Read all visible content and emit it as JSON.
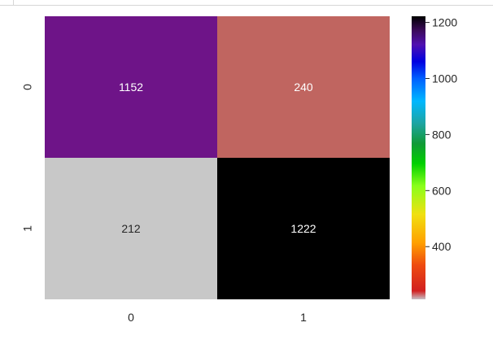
{
  "chart_data": {
    "type": "heatmap",
    "title": "",
    "xlabel": "",
    "ylabel": "",
    "x_ticks": [
      "0",
      "1"
    ],
    "y_ticks": [
      "0",
      "1"
    ],
    "matrix": [
      [
        1152,
        240
      ],
      [
        212,
        1222
      ]
    ],
    "colormap": "gist_ncar_r",
    "colorbar": {
      "min": 212,
      "max": 1222,
      "ticks": [
        400,
        600,
        800,
        1000,
        1200
      ],
      "tick_labels": [
        "400",
        "600",
        "800",
        "1000",
        "1200"
      ],
      "placement": "right"
    },
    "colors": {
      "c_212": "#c8c8c8",
      "c_240": "#c06560",
      "c_1152": "#6e1488",
      "c_1222": "#000000"
    }
  }
}
